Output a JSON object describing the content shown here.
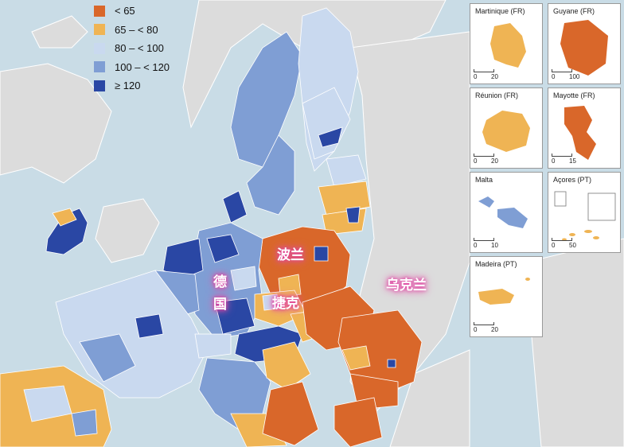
{
  "legend": {
    "items": [
      {
        "label": "< 65",
        "color": "#d9672a"
      },
      {
        "label": "65 – < 80",
        "color": "#efb454"
      },
      {
        "label": "80 – < 100",
        "color": "#c9d9ef"
      },
      {
        "label": "100 – < 120",
        "color": "#7f9ed4"
      },
      {
        "label": "≥ 120",
        "color": "#2a47a4"
      }
    ]
  },
  "country_labels": {
    "poland": "波兰",
    "germany_1": "德",
    "germany_2": "国",
    "czech": "捷克",
    "ukraine": "乌克兰"
  },
  "insets": [
    {
      "title": "Martinique (FR)",
      "scale_start": "0",
      "scale_end": "20",
      "color": "#efb454"
    },
    {
      "title": "Guyane (FR)",
      "scale_start": "0",
      "scale_end": "100",
      "color": "#d9672a"
    },
    {
      "title": "Réunion (FR)",
      "scale_start": "0",
      "scale_end": "20",
      "color": "#efb454"
    },
    {
      "title": "Mayotte (FR)",
      "scale_start": "0",
      "scale_end": "15",
      "color": "#d9672a"
    },
    {
      "title": "Malta",
      "scale_start": "0",
      "scale_end": "10",
      "color": "#7f9ed4"
    },
    {
      "title": "Açores (PT)",
      "scale_start": "0",
      "scale_end": "50",
      "color": "#efb454"
    },
    {
      "title": "Madeira (PT)",
      "scale_start": "0",
      "scale_end": "20",
      "color": "#efb454"
    }
  ],
  "colors": {
    "sea": "#c9dce6",
    "non_eu_land": "#dcdcdc",
    "border": "#ffffff"
  }
}
